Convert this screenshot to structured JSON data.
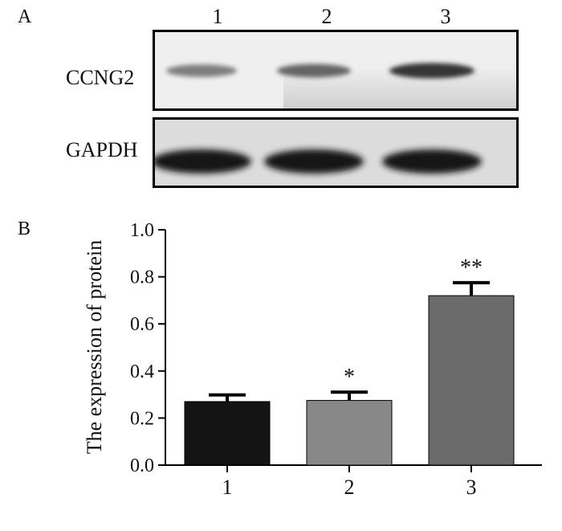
{
  "panel_a": {
    "label": "A",
    "lanes": [
      "1",
      "2",
      "3"
    ],
    "rows": [
      {
        "name": "CCNG2",
        "band_intensity": [
          0.45,
          0.6,
          0.9
        ]
      },
      {
        "name": "GAPDH",
        "band_intensity": [
          0.95,
          1.0,
          0.95
        ]
      }
    ]
  },
  "panel_b": {
    "label": "B"
  },
  "chart_data": {
    "type": "bar",
    "categories": [
      "1",
      "2",
      "3"
    ],
    "values": [
      0.27,
      0.275,
      0.72
    ],
    "errors": [
      0.028,
      0.035,
      0.055
    ],
    "significance": [
      "",
      "*",
      "**"
    ],
    "bar_colors": [
      "#141414",
      "#888888",
      "#6b6b6b"
    ],
    "title": "",
    "xlabel": "",
    "ylabel": "The expression of protein",
    "ylim": [
      0,
      1.0
    ],
    "yticks": [
      "0.0",
      "0.2",
      "0.4",
      "0.6",
      "0.8",
      "1.0"
    ],
    "grid": false
  }
}
